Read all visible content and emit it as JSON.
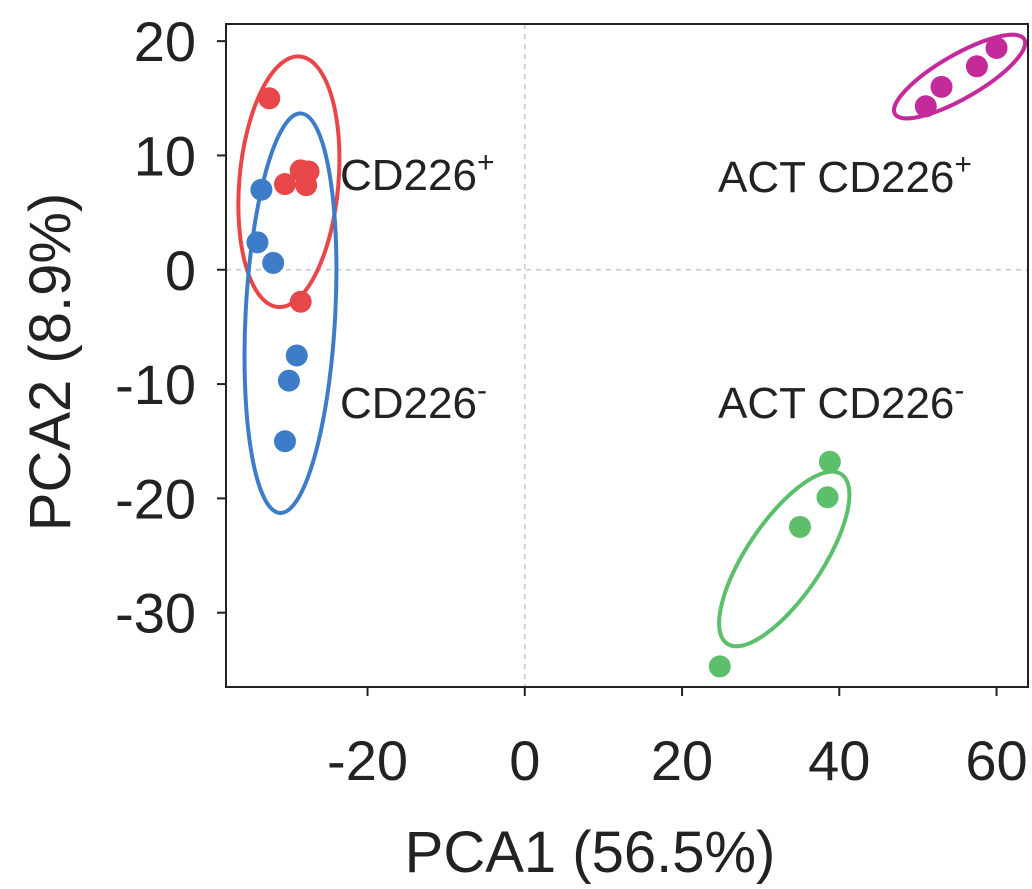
{
  "chart_data": {
    "type": "scatter",
    "xlabel": "PCA1 (56.5%)",
    "ylabel": "PCA2 (8.9%)",
    "xlim": [
      -38,
      64
    ],
    "ylim": [
      -36.5,
      21.5
    ],
    "xticks": [
      -20,
      0,
      20,
      40,
      60
    ],
    "yticks": [
      20,
      10,
      0,
      -10,
      -20,
      -30
    ],
    "xtick_labels": [
      "-20",
      "0",
      "20",
      "40",
      "60"
    ],
    "ytick_labels": [
      "20",
      "10",
      "0",
      "-10",
      "-20",
      "-30"
    ],
    "grid": "dashed lines at x=0 and y=0",
    "legend": "none",
    "series": [
      {
        "label_text": "CD226",
        "label_sup": "+",
        "color": "#e8474a",
        "points": [
          [
            -32.5,
            15.0
          ],
          [
            -30.5,
            7.5
          ],
          [
            -28.5,
            8.7
          ],
          [
            -27.5,
            8.6
          ],
          [
            -27.8,
            7.4
          ],
          [
            -28.5,
            -2.8
          ]
        ],
        "ellipse": {
          "cx": -30.0,
          "cy": 7.7,
          "rx": 6.3,
          "ry": 11.0,
          "angle_deg": 5
        }
      },
      {
        "label_text": "CD226",
        "label_sup": "-",
        "color": "#3d7cc9",
        "points": [
          [
            -33.5,
            7.0
          ],
          [
            -34.0,
            2.4
          ],
          [
            -32.0,
            0.6
          ],
          [
            -29.0,
            -7.5
          ],
          [
            -30.0,
            -9.7
          ],
          [
            -30.5,
            -15.0
          ]
        ],
        "ellipse": {
          "cx": -29.8,
          "cy": -3.8,
          "rx": 5.7,
          "ry": 17.5,
          "angle_deg": 3
        }
      },
      {
        "label_text": "ACT CD226",
        "label_sup": "+",
        "color": "#c52a9a",
        "points": [
          [
            51.0,
            14.3
          ],
          [
            53.0,
            16.0
          ],
          [
            57.5,
            17.8
          ],
          [
            60.0,
            19.4
          ]
        ],
        "ellipse": {
          "cx": 55.3,
          "cy": 16.9,
          "rx": 9.5,
          "ry": 1.9,
          "angle_deg": -30
        }
      },
      {
        "label_text": "ACT CD226",
        "label_sup": "-",
        "color": "#5bbf6b",
        "points": [
          [
            38.8,
            -16.8
          ],
          [
            38.5,
            -19.9
          ],
          [
            35.0,
            -22.5
          ],
          [
            24.8,
            -34.7
          ]
        ],
        "ellipse": {
          "cx": 33.0,
          "cy": -25.3,
          "rx": 13.0,
          "ry": 3.3,
          "angle_deg": -56
        }
      }
    ]
  },
  "labels": [
    {
      "text": "CD226",
      "sup": "+"
    },
    {
      "text": "CD226",
      "sup": "-"
    },
    {
      "text": "ACT CD226",
      "sup": "+"
    },
    {
      "text": "ACT CD226",
      "sup": "-"
    }
  ]
}
